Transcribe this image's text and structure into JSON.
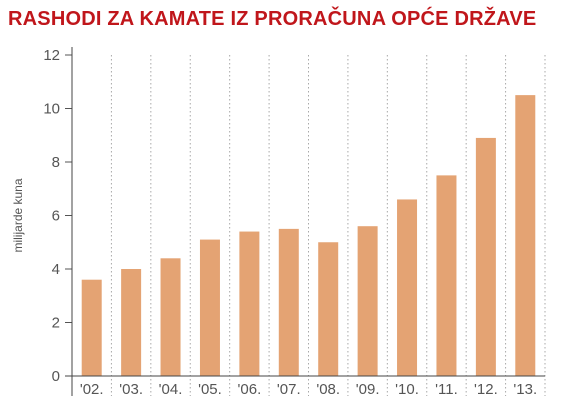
{
  "chart_data": {
    "type": "bar",
    "title": "RASHODI ZA KAMATE IZ PRORAČUNA OPĆE DRŽAVE",
    "ylabel": "milijarde kuna",
    "xlabel": "",
    "categories": [
      "'02.",
      "'03.",
      "'04.",
      "'05.",
      "'06.",
      "'07.",
      "'08.",
      "'09.",
      "'10.",
      "'11.",
      "'12.",
      "'13."
    ],
    "values": [
      3.6,
      4.0,
      4.4,
      5.1,
      5.4,
      5.5,
      5.0,
      5.6,
      6.6,
      7.5,
      8.9,
      10.5
    ],
    "ylim": [
      0,
      12
    ],
    "yticks": [
      0,
      2,
      4,
      6,
      8,
      10,
      12
    ],
    "grid": "vertical dotted",
    "legend": "none",
    "bar_color": "#e4a373",
    "grid_color": "#a8a8a8",
    "title_color": "#c0161b"
  }
}
